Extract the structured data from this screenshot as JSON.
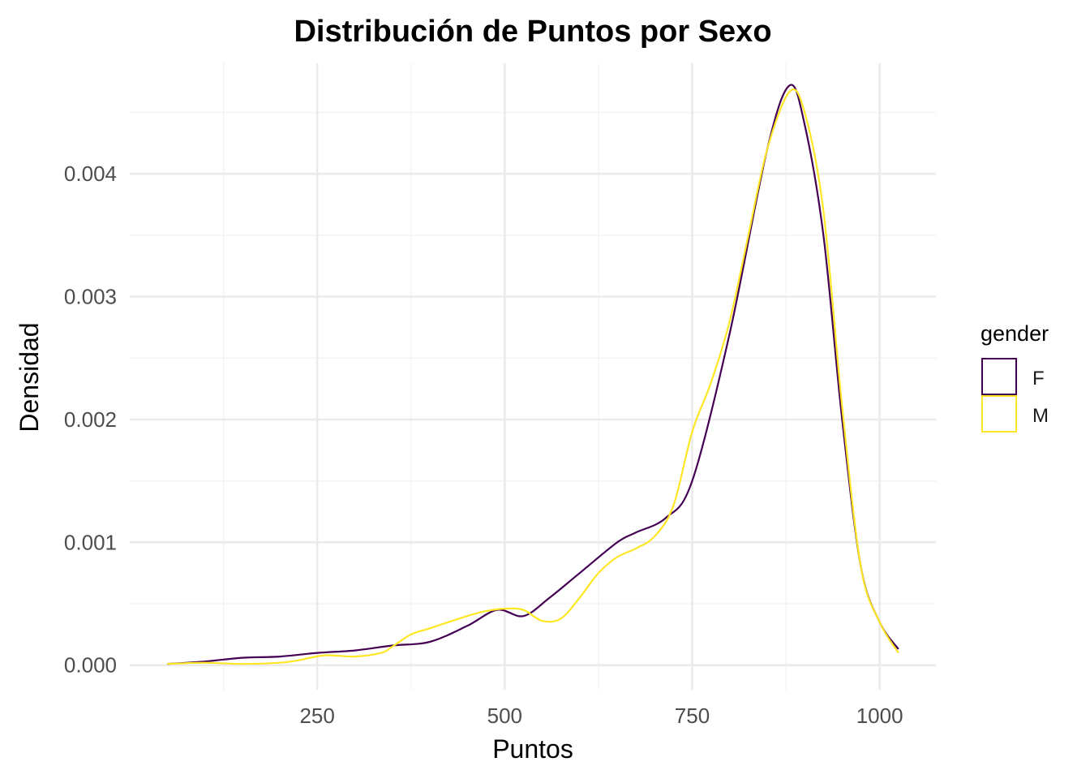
{
  "chart_data": {
    "type": "line",
    "title": "Distribución de Puntos por Sexo",
    "xlabel": "Puntos",
    "ylabel": "Densidad",
    "xlim": [
      0,
      1075
    ],
    "ylim": [
      -0.0002,
      0.0049
    ],
    "xticks": [
      250,
      500,
      750,
      1000
    ],
    "xtick_labels": [
      "250",
      "500",
      "750",
      "1000"
    ],
    "yticks": [
      0,
      0.001,
      0.002,
      0.003,
      0.004
    ],
    "ytick_labels": [
      "0.000",
      "0.001",
      "0.002",
      "0.003",
      "0.004"
    ],
    "grid": true,
    "legend": {
      "title": "gender",
      "position": "right"
    },
    "series": [
      {
        "name": "F",
        "color": "#440154",
        "x": [
          50,
          100,
          150,
          200,
          250,
          300,
          350,
          400,
          450,
          490,
          525,
          560,
          600,
          650,
          675,
          715,
          750,
          800,
          850,
          880,
          900,
          925,
          950,
          975,
          1000,
          1025
        ],
        "y": [
          1e-05,
          3e-05,
          6e-05,
          7e-05,
          0.0001,
          0.00012,
          0.00016,
          0.00019,
          0.00032,
          0.00045,
          0.0004,
          0.00055,
          0.00075,
          0.001,
          0.00108,
          0.0012,
          0.0015,
          0.0027,
          0.0042,
          0.00472,
          0.0044,
          0.0035,
          0.002,
          0.0008,
          0.00035,
          0.00013
        ]
      },
      {
        "name": "M",
        "color": "#fde725",
        "x": [
          50,
          100,
          150,
          200,
          225,
          260,
          300,
          335,
          350,
          375,
          400,
          450,
          475,
          500,
          525,
          550,
          575,
          600,
          625,
          650,
          675,
          700,
          725,
          750,
          775,
          800,
          825,
          850,
          880,
          900,
          925,
          950,
          975,
          1000,
          1025
        ],
        "y": [
          1e-05,
          2e-05,
          1e-05,
          2e-05,
          4e-05,
          8e-05,
          7e-05,
          0.0001,
          0.00015,
          0.00025,
          0.0003,
          0.0004,
          0.00044,
          0.00046,
          0.00045,
          0.00036,
          0.00038,
          0.00055,
          0.00075,
          0.00088,
          0.00095,
          0.00105,
          0.0013,
          0.0019,
          0.0023,
          0.0028,
          0.0035,
          0.0042,
          0.00467,
          0.0045,
          0.0037,
          0.0021,
          0.0008,
          0.00035,
          0.0001
        ]
      }
    ]
  }
}
